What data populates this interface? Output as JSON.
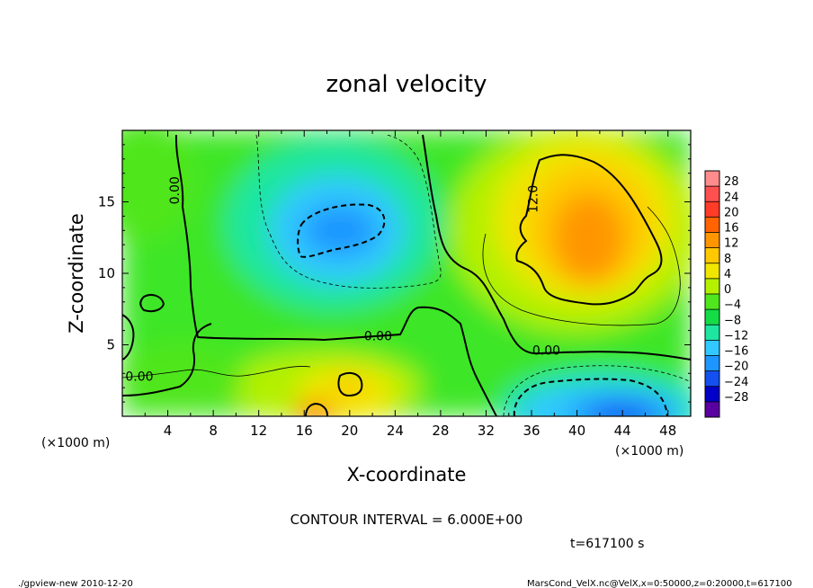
{
  "chart_data": {
    "type": "heatmap",
    "title": "zonal velocity",
    "xlabel": "X-coordinate",
    "ylabel": "Z-coordinate",
    "x_unit": "(×1000 m)",
    "y_unit": "(×1000 m)",
    "xlim": [
      0,
      50
    ],
    "ylim": [
      0,
      20
    ],
    "x_ticks": [
      4,
      8,
      12,
      16,
      20,
      24,
      28,
      32,
      36,
      40,
      44,
      48
    ],
    "y_ticks": [
      5,
      10,
      15
    ],
    "colorbar": {
      "labels": [
        "28",
        "24",
        "20",
        "16",
        "12",
        "8",
        "4",
        "0",
        "-4",
        "-8",
        "-12",
        "-16",
        "-20",
        "-24",
        "-28"
      ],
      "colors": [
        "#ff8c8c",
        "#ff5050",
        "#ff3c28",
        "#ff6400",
        "#ff9600",
        "#ffc800",
        "#f0e600",
        "#b4f000",
        "#50e61e",
        "#14dc46",
        "#1ee6a0",
        "#32c8ff",
        "#1e96ff",
        "#1450f0",
        "#0000c8",
        "#5a00a0"
      ]
    },
    "contour_labels": [
      {
        "text": "0.00",
        "x": 5.0,
        "z": 15.8,
        "rotate": true
      },
      {
        "text": "12.0",
        "x": 36.5,
        "z": 15.2,
        "rotate": true
      },
      {
        "text": "0.00",
        "x": 22.5,
        "z": 5.3
      },
      {
        "text": "0.00",
        "x": 37.3,
        "z": 4.3
      },
      {
        "text": "0.00",
        "x": 1.5,
        "z": 2.5
      }
    ],
    "features": [
      {
        "kind": "min",
        "x": 19,
        "z": 13,
        "approx_value": -12
      },
      {
        "kind": "max",
        "x": 40,
        "z": 12.5,
        "approx_value": 16
      },
      {
        "kind": "min",
        "x": 42,
        "z": 1,
        "approx_value": -14
      },
      {
        "kind": "max",
        "x": 19.5,
        "z": 2,
        "approx_value": 12
      }
    ],
    "contour_interval": "CONTOUR INTERVAL = 6.000E+00",
    "time": "t=617100 s"
  },
  "footer": {
    "left": "./gpview-new   2010-12-20",
    "right": "MarsCond_VelX.nc@VelX,x=0:50000,z=0:20000,t=617100"
  }
}
